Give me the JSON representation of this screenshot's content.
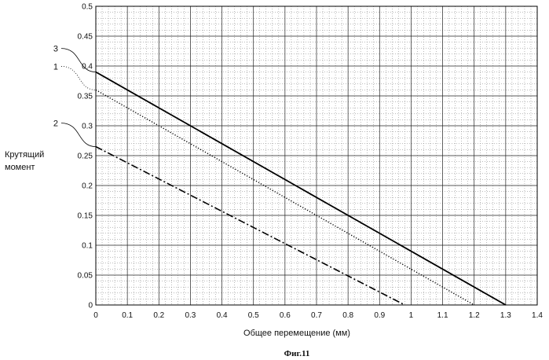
{
  "chart_data": {
    "type": "line",
    "title": "",
    "caption": "Фиг.11",
    "xlabel": "Общее перемещение (мм)",
    "ylabel_lines": [
      "Крутящий",
      "момент"
    ],
    "xlim": [
      0,
      1.4
    ],
    "ylim": [
      0,
      0.5
    ],
    "x_ticks": [
      "0",
      "0.1",
      "0.2",
      "0.3",
      "0.4",
      "0.5",
      "0.6",
      "0.7",
      "0.8",
      "0.9",
      "1",
      "1.1",
      "1.2",
      "1.3",
      "1.4"
    ],
    "y_ticks": [
      "0",
      "0.05",
      "0.1",
      "0.15",
      "0.2",
      "0.25",
      "0.3",
      "0.35",
      "0.4",
      "0.45",
      "0.5"
    ],
    "grid": true,
    "series": [
      {
        "name": "3",
        "style": "solid",
        "x": [
          0,
          1.3
        ],
        "y": [
          0.39,
          0
        ]
      },
      {
        "name": "1",
        "style": "dotted",
        "x": [
          0,
          1.2
        ],
        "y": [
          0.36,
          0
        ]
      },
      {
        "name": "2",
        "style": "dashdot",
        "x": [
          0,
          0.98
        ],
        "y": [
          0.265,
          0
        ]
      }
    ]
  }
}
